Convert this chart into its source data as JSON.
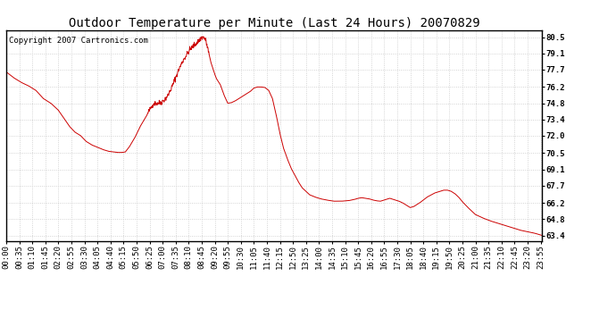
{
  "title": "Outdoor Temperature per Minute (Last 24 Hours) 20070829",
  "copyright": "Copyright 2007 Cartronics.com",
  "line_color": "#cc0000",
  "bg_color": "#ffffff",
  "plot_bg_color": "#ffffff",
  "grid_color": "#c8c8c8",
  "yticks": [
    63.4,
    64.8,
    66.2,
    67.7,
    69.1,
    70.5,
    72.0,
    73.4,
    74.8,
    76.2,
    77.7,
    79.1,
    80.5
  ],
  "ylim": [
    62.9,
    81.1
  ],
  "title_fontsize": 10,
  "annotation_fontsize": 6.5,
  "tick_fontsize": 6.5,
  "total_minutes": 1440,
  "key_points": {
    "0": 77.5,
    "20": 77.0,
    "40": 76.6,
    "60": 76.3,
    "80": 75.9,
    "100": 75.2,
    "120": 74.8,
    "140": 74.2,
    "155": 73.5,
    "170": 72.8,
    "185": 72.3,
    "200": 72.0,
    "215": 71.5,
    "230": 71.2,
    "245": 71.0,
    "260": 70.8,
    "275": 70.65,
    "290": 70.6,
    "300": 70.55,
    "310": 70.55,
    "320": 70.6,
    "330": 71.0,
    "345": 71.8,
    "360": 72.8,
    "375": 73.6,
    "385": 74.2,
    "395": 74.75,
    "405": 74.8,
    "415": 74.85,
    "425": 75.1,
    "435": 75.5,
    "445": 76.2,
    "455": 77.0,
    "465": 77.8,
    "475": 78.5,
    "485": 79.0,
    "495": 79.5,
    "505": 79.8,
    "515": 80.1,
    "520": 80.3,
    "525": 80.45,
    "530": 80.5,
    "535": 80.3,
    "540": 79.7,
    "545": 79.0,
    "550": 78.3,
    "555": 77.8,
    "560": 77.3,
    "565": 76.9,
    "575": 76.4,
    "585": 75.5,
    "595": 74.8,
    "605": 74.85,
    "615": 75.0,
    "625": 75.2,
    "635": 75.4,
    "645": 75.6,
    "655": 75.8,
    "665": 76.1,
    "675": 76.2,
    "685": 76.2,
    "695": 76.15,
    "705": 75.9,
    "715": 75.2,
    "725": 73.8,
    "735": 72.2,
    "745": 70.9,
    "755": 70.0,
    "765": 69.2,
    "775": 68.6,
    "785": 68.0,
    "795": 67.5,
    "805": 67.2,
    "815": 66.9,
    "830": 66.7,
    "845": 66.55,
    "860": 66.45,
    "880": 66.35,
    "900": 66.35,
    "920": 66.4,
    "935": 66.5,
    "945": 66.6,
    "955": 66.65,
    "965": 66.6,
    "975": 66.55,
    "985": 66.45,
    "995": 66.38,
    "1005": 66.35,
    "1015": 66.45,
    "1025": 66.55,
    "1030": 66.6,
    "1035": 66.55,
    "1045": 66.45,
    "1055": 66.35,
    "1065": 66.2,
    "1075": 66.0,
    "1085": 65.8,
    "1095": 65.9,
    "1110": 66.2,
    "1130": 66.7,
    "1150": 67.05,
    "1165": 67.2,
    "1175": 67.3,
    "1185": 67.3,
    "1195": 67.2,
    "1205": 67.0,
    "1215": 66.7,
    "1225": 66.3,
    "1240": 65.8,
    "1260": 65.2,
    "1280": 64.9,
    "1300": 64.65,
    "1320": 64.45,
    "1340": 64.25,
    "1360": 64.05,
    "1380": 63.85,
    "1400": 63.72,
    "1420": 63.58,
    "1439": 63.4
  }
}
